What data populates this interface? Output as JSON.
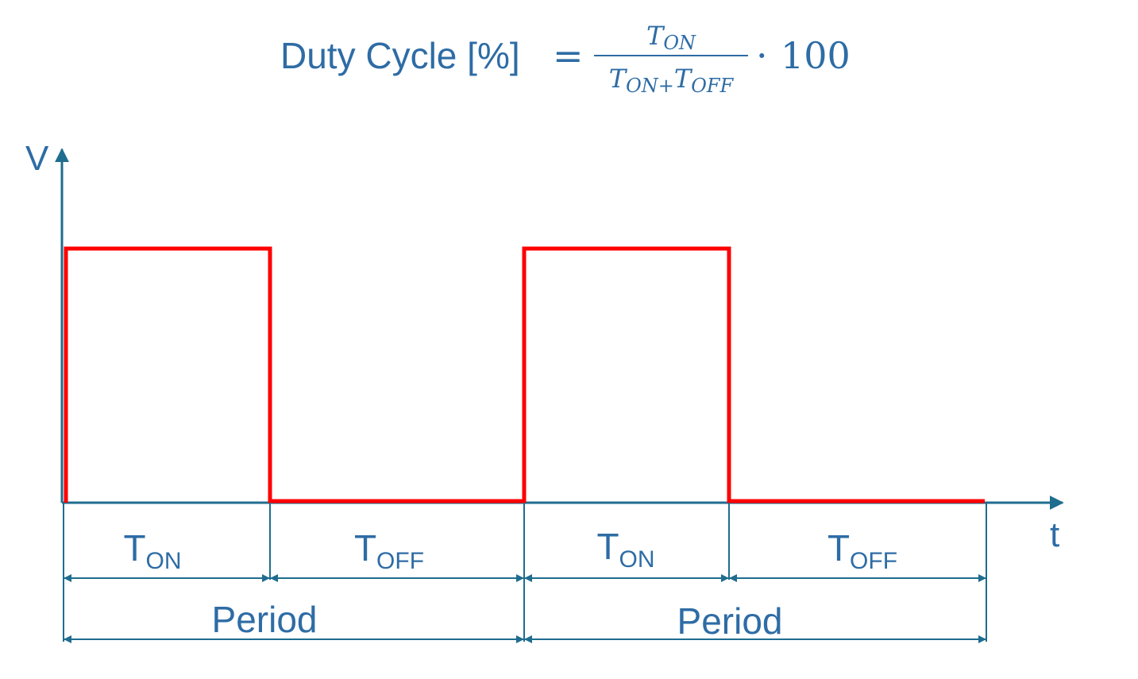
{
  "formula": {
    "lhs": "Duty Cycle [%]",
    "eq": "=",
    "numerator": {
      "base": "T",
      "sub": "ON"
    },
    "denominator": [
      {
        "base": "T",
        "sub": "ON+"
      },
      {
        "base": "T",
        "sub": "OFF"
      }
    ],
    "times": "·",
    "factor": "100"
  },
  "axes": {
    "y": "V",
    "x": "t"
  },
  "segments": [
    {
      "base": "T",
      "sub": "ON"
    },
    {
      "base": "T",
      "sub": "OFF"
    },
    {
      "base": "T",
      "sub": "ON"
    },
    {
      "base": "T",
      "sub": "OFF"
    }
  ],
  "periods": [
    "Period",
    "Period"
  ]
}
